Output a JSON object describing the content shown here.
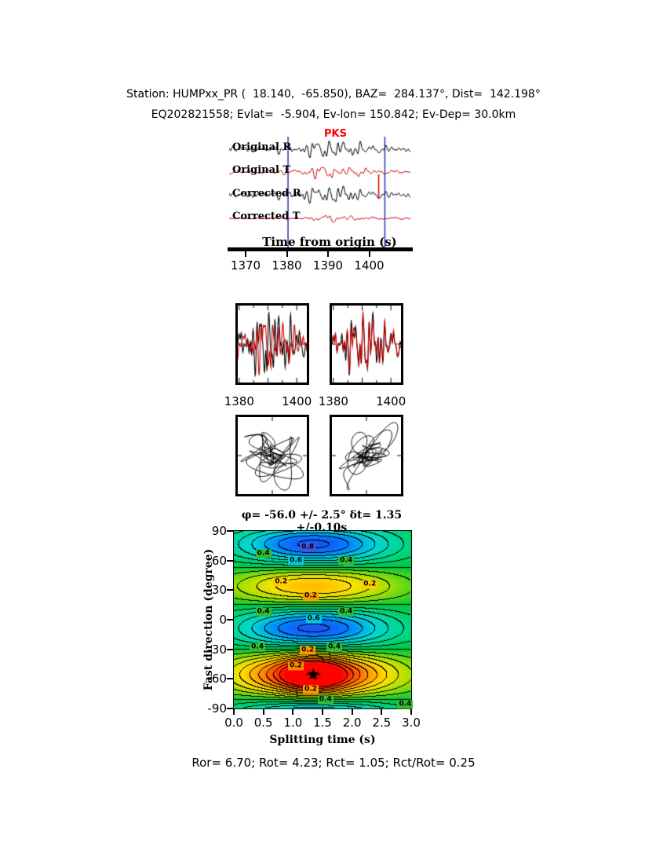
{
  "header": {
    "line1": "Station: HUMPxx_PR (  18.140,  -65.850), BAZ=  284.137°, Dist=  142.198°",
    "line2": "EQ202821558; Evlat=  -5.904, Ev-lon= 150.842; Ev-Dep= 30.0km"
  },
  "footer": {
    "text": "Ror= 6.70; Rot= 4.23; Rct= 1.05; Rct/Rot= 0.25",
    "values": {
      "Ror": 6.7,
      "Rot": 4.23,
      "Rct": 1.05,
      "Rct_over_Rot": 0.25
    }
  },
  "chart_data": {
    "seismograms": {
      "type": "line",
      "phase_label": "PKS",
      "phase_color": "#ff0000",
      "xlabel": "Time from origin (s)",
      "xlim": [
        1366,
        1410
      ],
      "xticks": [
        1370,
        1380,
        1390,
        1400
      ],
      "window_lines": [
        1380.3,
        1403.8
      ],
      "window_line_color": "#2233bb",
      "arrival_marker_time": 1402.3,
      "arrival_marker_color": "#dd0000",
      "traces": [
        {
          "label": "Original R",
          "color": "#000000"
        },
        {
          "label": "Original T",
          "color": "#cc0000"
        },
        {
          "label": "Corrected R",
          "color": "#000000"
        },
        {
          "label": "Corrected T",
          "color": "#cc0000"
        }
      ],
      "synth": {
        "seedA": 7,
        "seedB": 19,
        "seedC": 33,
        "env_center": 1391,
        "env_width": 8,
        "env_floor": 0.3
      }
    },
    "window_left": {
      "type": "line",
      "xlim": [
        1379.5,
        1403.5
      ],
      "xticks": [
        1380,
        1400
      ],
      "tick_minor": [
        1380,
        1385,
        1390,
        1395,
        1400
      ],
      "series": [
        {
          "name": "R windowed",
          "color": "#000000"
        },
        {
          "name": "T windowed",
          "color": "#cc0000"
        }
      ]
    },
    "window_right": {
      "type": "line",
      "xlim": [
        1379.5,
        1403.5
      ],
      "xticks": [
        1380,
        1400
      ],
      "tick_minor": [
        1380,
        1385,
        1390,
        1395,
        1400
      ],
      "series": [
        {
          "name": "R corrected",
          "color": "#000000"
        },
        {
          "name": "T corrected",
          "color": "#cc0000"
        }
      ]
    },
    "particle_motion_left": {
      "type": "scatter",
      "description": "particle motion before correction"
    },
    "particle_motion_right": {
      "type": "scatter",
      "description": "particle motion after correction"
    },
    "misfit": {
      "type": "heatmap",
      "title": "φ= -56.0 +/- 2.5° δt= 1.35 +/-0.10s",
      "xlabel": "Splitting time (s)",
      "ylabel": "Fast direction (degree)",
      "xlim": [
        0,
        3
      ],
      "ylim": [
        -90,
        90
      ],
      "xticks": [
        "0.0",
        "0.5",
        "1.0",
        "1.5",
        "2.0",
        "2.5",
        "3.0"
      ],
      "yticks": [
        90,
        60,
        30,
        0,
        -30,
        -60,
        -90
      ],
      "best": {
        "phi_deg": -56.0,
        "phi_err_deg": 2.5,
        "dt_s": 1.35,
        "dt_err_s": 0.1
      },
      "contour_interval": 0.05,
      "model": {
        "phi0": -56,
        "dt0": 1.35,
        "sigma": 1.35,
        "c4": 0.36,
        "c2": 0.11,
        "deep": 0.22,
        "deep_sx": 0.5,
        "deep_sy": 18
      },
      "colormap": [
        {
          "v": 0.0,
          "c": [
            255,
            0,
            0
          ]
        },
        {
          "v": 0.1,
          "c": [
            255,
            70,
            0
          ]
        },
        {
          "v": 0.2,
          "c": [
            255,
            150,
            0
          ]
        },
        {
          "v": 0.3,
          "c": [
            255,
            225,
            0
          ]
        },
        {
          "v": 0.4,
          "c": [
            160,
            225,
            0
          ]
        },
        {
          "v": 0.5,
          "c": [
            0,
            200,
            60
          ]
        },
        {
          "v": 0.6,
          "c": [
            0,
            215,
            140
          ]
        },
        {
          "v": 0.7,
          "c": [
            0,
            215,
            215
          ]
        },
        {
          "v": 0.8,
          "c": [
            0,
            130,
            255
          ]
        },
        {
          "v": 0.9,
          "c": [
            40,
            60,
            240
          ]
        },
        {
          "v": 1.0,
          "c": [
            15,
            15,
            170
          ]
        }
      ],
      "contour_labels": [
        {
          "v": "0.4",
          "dt": 0.5,
          "phi": 67,
          "bg": "#33bb33"
        },
        {
          "v": "0.6",
          "dt": 1.05,
          "phi": 60,
          "bg": "#00ccdd"
        },
        {
          "v": "0.8",
          "dt": 1.25,
          "phi": 73,
          "bg": "#4455ee"
        },
        {
          "v": "0.4",
          "dt": 1.9,
          "phi": 60,
          "bg": "#33bb33"
        },
        {
          "v": "0.2",
          "dt": 0.8,
          "phi": 38,
          "bg": "#ffcc00"
        },
        {
          "v": "0.2",
          "dt": 2.3,
          "phi": 36,
          "bg": "#ffcc00"
        },
        {
          "v": "0.2",
          "dt": 1.3,
          "phi": 24,
          "bg": "#ff9900"
        },
        {
          "v": "0.4",
          "dt": 0.5,
          "phi": 8,
          "bg": "#33bb33"
        },
        {
          "v": "0.6",
          "dt": 1.35,
          "phi": 1,
          "bg": "#00ccdd"
        },
        {
          "v": "0.4",
          "dt": 1.9,
          "phi": 8,
          "bg": "#33bb33"
        },
        {
          "v": "0.4",
          "dt": 0.4,
          "phi": -28,
          "bg": "#33bb33"
        },
        {
          "v": "0.2",
          "dt": 1.25,
          "phi": -31,
          "bg": "#ff9900"
        },
        {
          "v": "0.4",
          "dt": 1.7,
          "phi": -28,
          "bg": "#33bb33"
        },
        {
          "v": "0.2",
          "dt": 1.05,
          "phi": -47,
          "bg": "#ff8800"
        },
        {
          "v": "0.2",
          "dt": 1.3,
          "phi": -71,
          "bg": "#ff9900"
        },
        {
          "v": "0.4",
          "dt": 1.55,
          "phi": -81,
          "bg": "#33bb33"
        },
        {
          "v": "0.4",
          "dt": 2.9,
          "phi": -86,
          "bg": "#33bb33"
        }
      ],
      "star_marker": {
        "symbol": "star",
        "color": "#000000"
      }
    }
  }
}
